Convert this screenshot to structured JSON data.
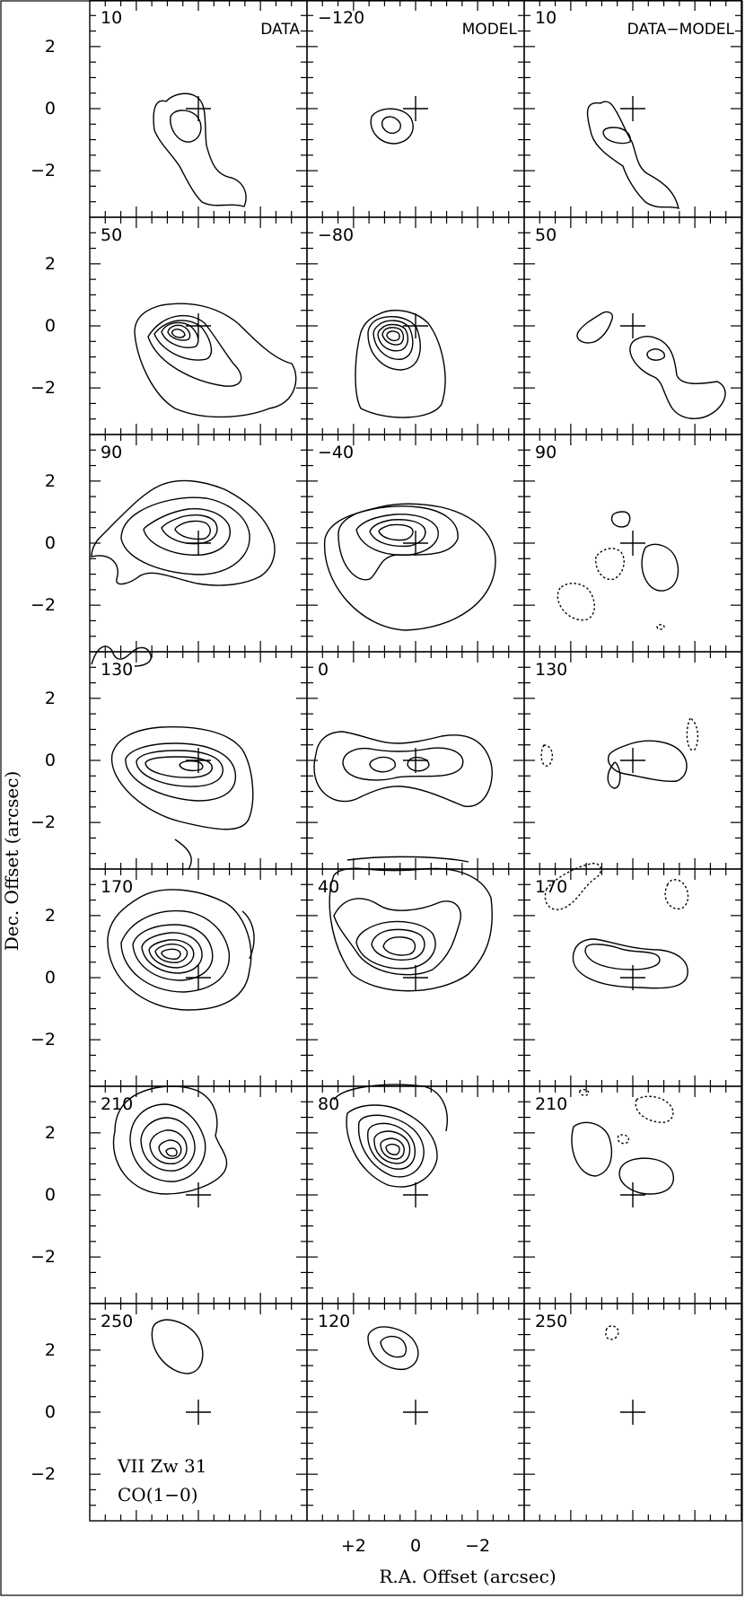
{
  "figure": {
    "object_label": [
      "VII Zw 31",
      "CO(1−0)"
    ],
    "xlabel": "R.A. Offset (arcsec)",
    "ylabel": "Dec. Offset (arcsec)",
    "column_titles": [
      "DATA",
      "MODEL",
      "DATA−MODEL"
    ],
    "x_tick_labels": [
      {
        "value": 2,
        "label": "+2"
      },
      {
        "value": 0,
        "label": "0"
      },
      {
        "value": -2,
        "label": "−2"
      }
    ],
    "y_tick_labels": [
      {
        "value": 2,
        "label": "2"
      },
      {
        "value": 0,
        "label": "0"
      },
      {
        "value": -2,
        "label": "−2"
      }
    ],
    "x_range_arcsec": [
      3.5,
      -3.5
    ],
    "y_range_arcsec": [
      -3.5,
      3.5
    ]
  },
  "panels": [
    {
      "row": 0,
      "col": 0,
      "velocity": "10",
      "cross": [
        0,
        0
      ]
    },
    {
      "row": 0,
      "col": 1,
      "velocity": "−120",
      "cross": [
        0,
        0
      ]
    },
    {
      "row": 0,
      "col": 2,
      "velocity": "10",
      "cross": [
        0,
        0
      ]
    },
    {
      "row": 1,
      "col": 0,
      "velocity": "50",
      "cross": [
        0,
        0
      ]
    },
    {
      "row": 1,
      "col": 1,
      "velocity": "−80",
      "cross": [
        0,
        0
      ]
    },
    {
      "row": 1,
      "col": 2,
      "velocity": "50",
      "cross": [
        0,
        0
      ]
    },
    {
      "row": 2,
      "col": 0,
      "velocity": "90",
      "cross": [
        0,
        0
      ]
    },
    {
      "row": 2,
      "col": 1,
      "velocity": "−40",
      "cross": [
        0,
        0
      ]
    },
    {
      "row": 2,
      "col": 2,
      "velocity": "90",
      "cross": [
        0,
        0
      ]
    },
    {
      "row": 3,
      "col": 0,
      "velocity": "130",
      "cross": [
        0,
        0
      ]
    },
    {
      "row": 3,
      "col": 1,
      "velocity": "0",
      "cross": [
        0,
        0
      ]
    },
    {
      "row": 3,
      "col": 2,
      "velocity": "130",
      "cross": [
        0,
        0
      ]
    },
    {
      "row": 4,
      "col": 0,
      "velocity": "170",
      "cross": [
        0,
        0
      ]
    },
    {
      "row": 4,
      "col": 1,
      "velocity": "40",
      "cross": [
        0,
        0
      ]
    },
    {
      "row": 4,
      "col": 2,
      "velocity": "170",
      "cross": [
        0,
        0
      ]
    },
    {
      "row": 5,
      "col": 0,
      "velocity": "210",
      "cross": [
        0,
        0
      ]
    },
    {
      "row": 5,
      "col": 1,
      "velocity": "80",
      "cross": [
        0,
        0
      ]
    },
    {
      "row": 5,
      "col": 2,
      "velocity": "210",
      "cross": [
        0,
        0
      ]
    },
    {
      "row": 6,
      "col": 0,
      "velocity": "250",
      "cross": [
        0,
        0
      ]
    },
    {
      "row": 6,
      "col": 1,
      "velocity": "120",
      "cross": [
        0,
        0
      ]
    },
    {
      "row": 6,
      "col": 2,
      "velocity": "250",
      "cross": [
        0,
        0
      ]
    }
  ]
}
